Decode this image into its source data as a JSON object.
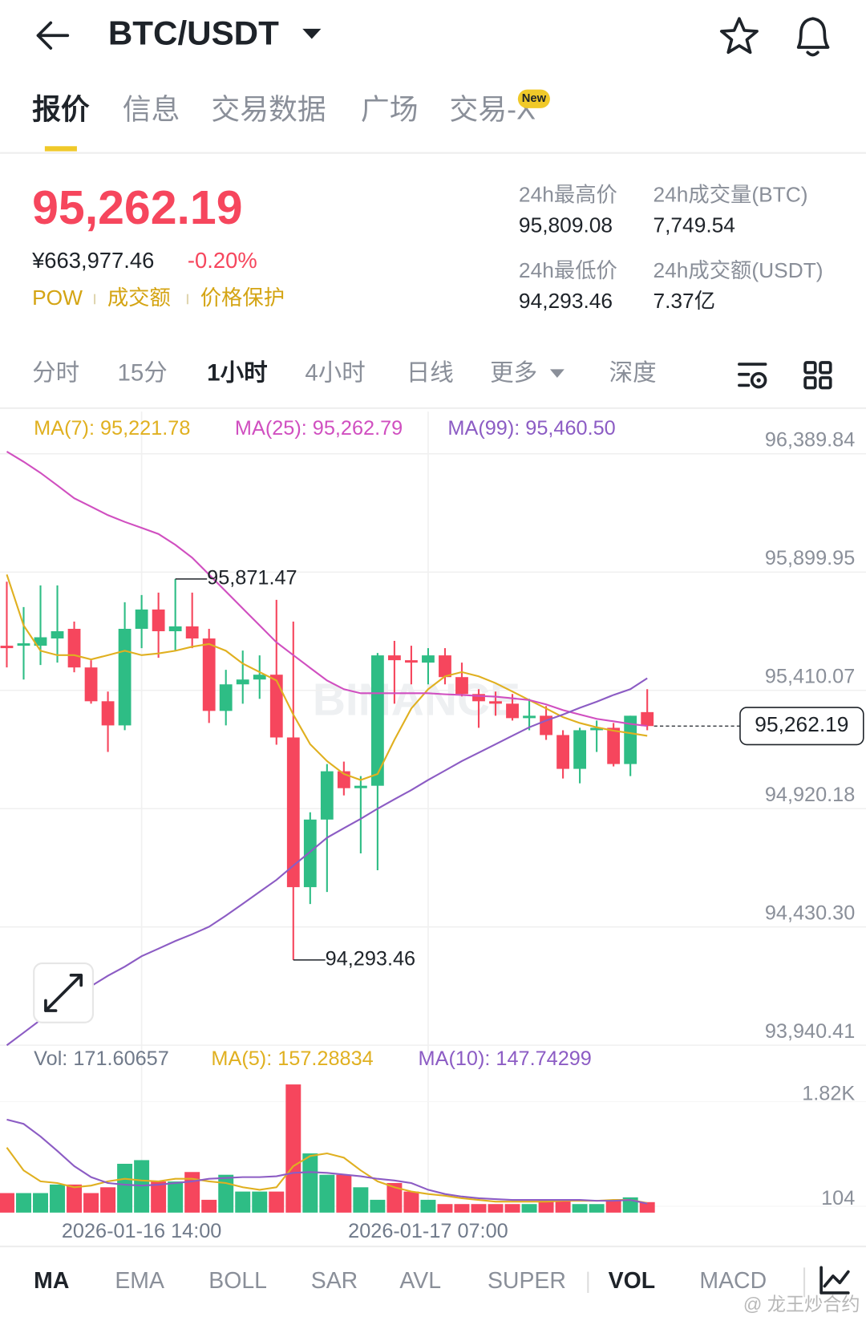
{
  "header": {
    "pair": "BTC/USDT"
  },
  "tabs": [
    "报价",
    "信息",
    "交易数据",
    "广场",
    "交易-X"
  ],
  "badge": "New",
  "price": {
    "last": "95,262.19",
    "cny": "¥663,977.46",
    "change": "-0.20%",
    "tags": [
      "POW",
      "成交额",
      "价格保护"
    ]
  },
  "stats": [
    {
      "label": "24h最高价",
      "value": "95,809.08"
    },
    {
      "label": "24h成交量(BTC)",
      "value": "7,749.54"
    },
    {
      "label": "24h最低价",
      "value": "94,293.46"
    },
    {
      "label": "24h成交额(USDT)",
      "value": "7.37亿"
    }
  ],
  "intervals": [
    "分时",
    "15分",
    "1小时",
    "4小时",
    "日线",
    "更多",
    "深度"
  ],
  "watermark_logo": "BINANCE",
  "chart_data": [
    {
      "type": "candlestick",
      "up_color": "#2ebd85",
      "down_color": "#f6465d",
      "categories": [
        null,
        null,
        null,
        null,
        null,
        null,
        null,
        null,
        "2026-01-16 14:00",
        null,
        null,
        null,
        null,
        null,
        null,
        null,
        null,
        null,
        null,
        null,
        null,
        null,
        null,
        null,
        null,
        "2026-01-17 07:00",
        null,
        null,
        null,
        null,
        null,
        null,
        null,
        null,
        null,
        null,
        null,
        null,
        null
      ],
      "open": [
        95595,
        95595,
        95595,
        95625,
        95665,
        95505,
        95365,
        95265,
        95665,
        95745,
        95655,
        95675,
        95625,
        95325,
        95435,
        95455,
        95475,
        95215,
        94595,
        94875,
        95075,
        95005,
        95015,
        95555,
        95535,
        95525,
        95555,
        95465,
        95395,
        95365,
        95355,
        95295,
        95305,
        95225,
        95085,
        95245,
        95255,
        95105,
        95320
      ],
      "high": [
        95860,
        95755,
        95845,
        95845,
        95695,
        95535,
        95405,
        95775,
        95805,
        95815,
        95871.47,
        95815,
        95665,
        95495,
        95575,
        95555,
        95785,
        95695,
        94905,
        95105,
        95115,
        95055,
        95565,
        95615,
        95595,
        95585,
        95585,
        95525,
        95415,
        95405,
        95395,
        95375,
        95345,
        95245,
        95255,
        95285,
        95275,
        95305,
        95415
      ],
      "low": [
        95505,
        95455,
        95515,
        95525,
        95485,
        95355,
        95155,
        95245,
        95585,
        95545,
        95575,
        95585,
        95275,
        95265,
        95355,
        95375,
        95185,
        94293.46,
        94525,
        94575,
        94975,
        94735,
        94665,
        95355,
        95435,
        95435,
        95435,
        95385,
        95255,
        95305,
        95285,
        95245,
        95205,
        95045,
        95025,
        95155,
        95095,
        95055,
        95245
      ],
      "close": [
        95585,
        95605,
        95630,
        95655,
        95505,
        95365,
        95265,
        95665,
        95745,
        95655,
        95675,
        95625,
        95325,
        95435,
        95455,
        95475,
        95215,
        94595,
        94875,
        95075,
        95005,
        95015,
        95555,
        95535,
        95525,
        95555,
        95465,
        95395,
        95365,
        95355,
        95295,
        95305,
        95225,
        95085,
        95245,
        95255,
        95105,
        95305,
        95262.19
      ],
      "series": [
        {
          "name": "MA(7): 95,221.78",
          "color": "#e0b020",
          "values": [
            95890,
            95679,
            95574,
            95556,
            95556,
            95538,
            95556,
            95574,
            95556,
            95563,
            95574,
            95591,
            95602,
            95574,
            95521,
            95486,
            95451,
            95310,
            95187,
            95117,
            95064,
            95039,
            95064,
            95205,
            95335,
            95415,
            95468,
            95486,
            95468,
            95440,
            95405,
            95370,
            95335,
            95299,
            95275,
            95257,
            95243,
            95233,
            95221.78
          ]
        },
        {
          "name": "MA(25): 95,262.79",
          "color": "#d04fc0",
          "values": [
            96399,
            96357,
            96311,
            96259,
            96206,
            96171,
            96136,
            96108,
            96083,
            96058,
            96013,
            95960,
            95890,
            95820,
            95749,
            95679,
            95609,
            95556,
            95503,
            95451,
            95415,
            95398,
            95398,
            95398,
            95398,
            95398,
            95394,
            95391,
            95387,
            95384,
            95377,
            95370,
            95352,
            95328,
            95310,
            95292,
            95282,
            95271,
            95262.79
          ]
        },
        {
          "name": "MA(99): 95,460.50",
          "color": "#8c5cc4",
          "values": [
            93940,
            93992,
            94045,
            94091,
            94140,
            94185,
            94228,
            94266,
            94309,
            94340,
            94372,
            94400,
            94431,
            94477,
            94526,
            94576,
            94625,
            94684,
            94741,
            94800,
            94839,
            94878,
            94920,
            94959,
            94997,
            95039,
            95078,
            95117,
            95152,
            95187,
            95222,
            95257,
            95285,
            95310,
            95338,
            95363,
            95391,
            95415,
            95460.5
          ]
        }
      ],
      "ylim": [
        93940,
        96565
      ],
      "yticks": [
        {
          "value": 96389.84,
          "label": "96,389.84"
        },
        {
          "value": 95899.95,
          "label": "95,899.95"
        },
        {
          "value": 95410.07,
          "label": "95,410.07"
        },
        {
          "value": 94920.18,
          "label": "94,920.18"
        },
        {
          "value": 94430.3,
          "label": "94,430.30"
        },
        {
          "value": 93940.41,
          "label": "93,940.41"
        }
      ],
      "last_price": {
        "value": 95262.19,
        "label": "95,262.19"
      },
      "high_label": "95,871.47",
      "low_label": "94,293.46",
      "grid": true
    },
    {
      "type": "bar",
      "label": "Vol: 171.60657",
      "values": [
        320,
        320,
        320,
        460,
        460,
        320,
        415,
        800,
        860,
        510,
        510,
        665,
        210,
        620,
        345,
        345,
        345,
        2100,
        970,
        620,
        620,
        415,
        210,
        485,
        345,
        210,
        140,
        140,
        140,
        140,
        140,
        140,
        210,
        210,
        140,
        140,
        210,
        250,
        171.60657
      ],
      "series": [
        {
          "name": "MA(5): 157.28834",
          "color": "#e0b020",
          "values": [
            1066,
            693,
            512,
            485,
            416,
            443,
            512,
            554,
            526,
            512,
            554,
            554,
            512,
            485,
            416,
            374,
            416,
            762,
            928,
            970,
            900,
            693,
            512,
            416,
            346,
            305,
            277,
            235,
            208,
            180,
            180,
            180,
            180,
            194,
            194,
            194,
            208,
            208,
            157.28834
          ]
        },
        {
          "name": "MA(10): 147.74299",
          "color": "#8c5cc4",
          "values": [
            1524,
            1454,
            1247,
            1011,
            762,
            582,
            485,
            457,
            443,
            457,
            485,
            512,
            554,
            568,
            582,
            582,
            596,
            651,
            665,
            651,
            623,
            596,
            554,
            526,
            485,
            374,
            305,
            263,
            235,
            222,
            208,
            208,
            208,
            208,
            208,
            194,
            194,
            208,
            147.74299
          ]
        }
      ],
      "ylim": [
        0,
        2700
      ],
      "yticks": [
        {
          "value": 1820,
          "label": "1.82K"
        },
        104
      ]
    }
  ],
  "indicators": [
    "MA",
    "EMA",
    "BOLL",
    "SAR",
    "AVL",
    "SUPER",
    "VOL",
    "MACD"
  ],
  "watermark": "@ 龙王炒合约"
}
